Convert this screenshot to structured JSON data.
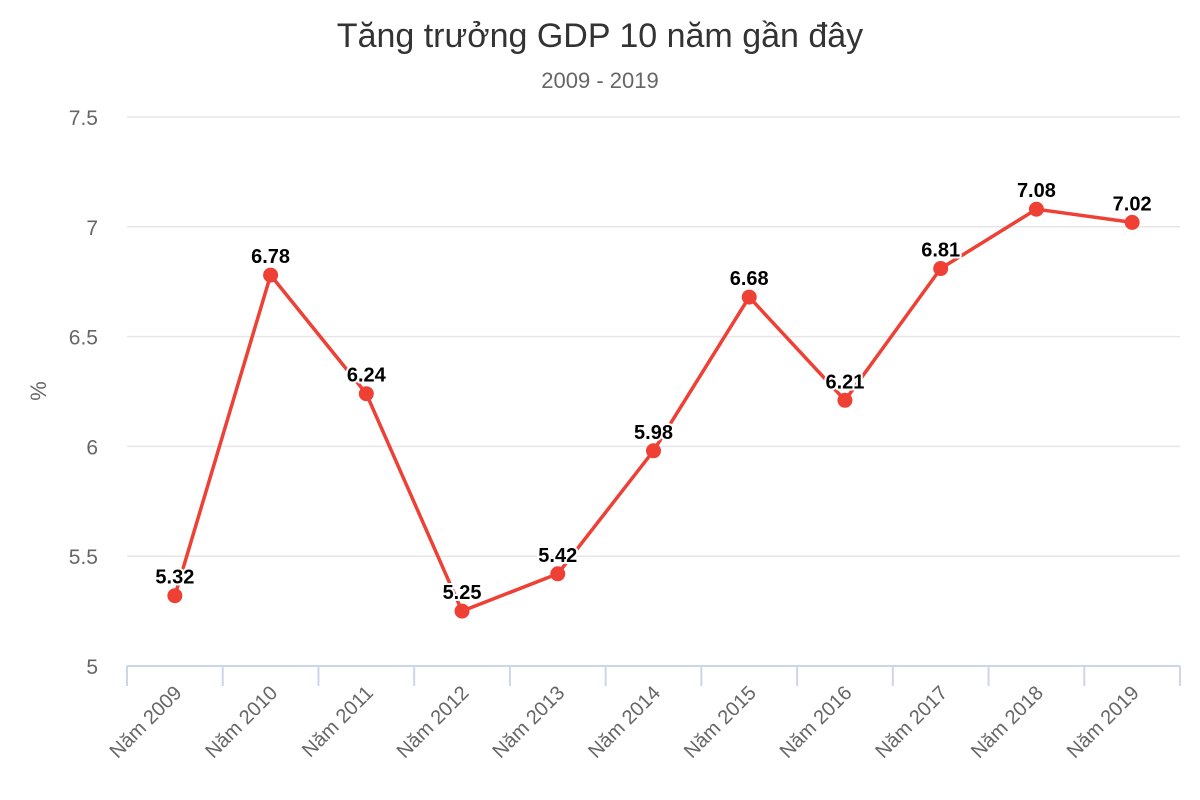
{
  "chart_data": {
    "type": "line",
    "title": "Tăng trưởng GDP 10 năm gần đây",
    "subtitle": "2009 - 2019",
    "xlabel": "",
    "ylabel": "%",
    "categories": [
      "Năm 2009",
      "Năm 2010",
      "Năm 2011",
      "Năm 2012",
      "Năm 2013",
      "Năm 2014",
      "Năm 2015",
      "Năm 2016",
      "Năm 2017",
      "Năm 2018",
      "Năm 2019"
    ],
    "series": [
      {
        "values": [
          5.32,
          6.78,
          6.24,
          5.25,
          5.42,
          5.98,
          6.68,
          6.21,
          6.81,
          7.08,
          7.02
        ],
        "value_labels": [
          "5.32",
          "6.78",
          "6.24",
          "5.25",
          "5.42",
          "5.98",
          "6.68",
          "6.21",
          "6.81",
          "7.08",
          "7.02"
        ]
      }
    ],
    "ylim": [
      5,
      7.5
    ],
    "yticks": [
      "5",
      "5.5",
      "6",
      "6.5",
      "7",
      "7.5"
    ],
    "grid": true,
    "legend": "none",
    "colors": {
      "line": "#ee4035",
      "grid": "#e6e6e6",
      "axis": "#ccd6eb",
      "text": "#666666",
      "title": "#333333"
    }
  }
}
